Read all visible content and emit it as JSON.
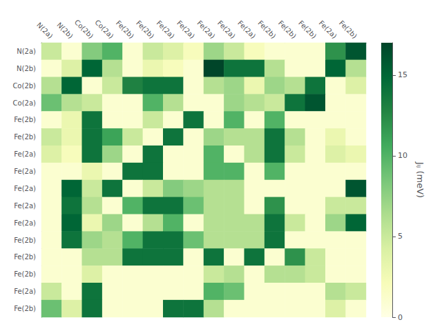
{
  "chart_data": {
    "type": "heatmap",
    "columns": [
      "N(2a)",
      "N(2b)",
      "Co(2b)",
      "Co(2a)",
      "Fe(2b)",
      "Fe(2b)",
      "Fe(2a)",
      "Fe(2a)",
      "Fe(2a)",
      "Fe(2a)",
      "Fe(2a)",
      "Fe(2b)",
      "Fe(2b)",
      "Fe(2b)",
      "Fe(2a)",
      "Fe(2b)"
    ],
    "rows": [
      "N(2a)",
      "N(2b)",
      "Co(2b)",
      "Co(2a)",
      "Fe(2b)",
      "Fe(2b)",
      "Fe(2a)",
      "Fe(2a)",
      "Fe(2a)",
      "Fe(2a)",
      "Fe(2a)",
      "Fe(2b)",
      "Fe(2b)",
      "Fe(2b)",
      "Fe(2a)",
      "Fe(2b)"
    ],
    "values": [
      [
        5,
        1,
        8,
        10,
        1,
        5,
        4,
        2,
        7,
        5,
        2,
        1,
        1,
        1,
        12,
        16
      ],
      [
        1,
        4,
        15,
        6,
        1,
        3,
        2,
        1,
        17,
        14,
        14,
        6,
        1,
        1,
        15,
        6
      ],
      [
        6,
        15,
        1,
        5,
        13,
        14,
        14,
        1,
        6,
        7,
        3,
        7,
        6,
        14,
        1,
        4
      ],
      [
        9,
        6,
        5,
        1,
        1,
        10,
        6,
        1,
        1,
        7,
        6,
        5,
        14,
        16,
        1,
        1
      ],
      [
        1,
        3,
        14,
        1,
        1,
        5,
        1,
        14,
        1,
        10,
        1,
        10,
        1,
        1,
        1,
        1
      ],
      [
        5,
        3,
        14,
        11,
        5,
        1,
        14,
        1,
        7,
        6,
        6,
        14,
        6,
        1,
        3,
        1
      ],
      [
        4,
        2,
        14,
        7,
        1,
        14,
        1,
        1,
        10,
        1,
        6,
        14,
        5,
        1,
        4,
        3
      ],
      [
        1,
        1,
        3,
        1,
        14,
        14,
        1,
        1,
        10,
        10,
        1,
        10,
        1,
        1,
        1,
        1
      ],
      [
        1,
        15,
        5,
        14,
        1,
        5,
        8,
        7,
        6,
        6,
        1,
        1,
        1,
        1,
        1,
        16
      ],
      [
        1,
        14,
        6,
        1,
        10,
        14,
        14,
        9,
        6,
        6,
        1,
        12,
        1,
        1,
        5,
        5
      ],
      [
        1,
        15,
        3,
        7,
        1,
        6,
        10,
        1,
        6,
        6,
        6,
        14,
        5,
        1,
        7,
        15
      ],
      [
        1,
        14,
        7,
        6,
        10,
        14,
        14,
        9,
        6,
        6,
        6,
        14,
        1,
        1,
        1,
        1
      ],
      [
        1,
        1,
        6,
        6,
        14,
        14,
        14,
        1,
        14,
        1,
        14,
        1,
        12,
        5,
        1,
        1
      ],
      [
        1,
        1,
        4,
        1,
        1,
        1,
        1,
        1,
        5,
        6,
        1,
        6,
        6,
        5,
        1,
        1
      ],
      [
        5,
        1,
        14,
        1,
        1,
        1,
        1,
        1,
        10,
        9,
        1,
        1,
        1,
        1,
        6,
        5
      ],
      [
        9,
        4,
        14,
        1,
        1,
        1,
        14,
        14,
        6,
        1,
        1,
        1,
        1,
        1,
        4,
        1
      ]
    ],
    "color_range": [
      0,
      17
    ],
    "color_ticks": [
      0,
      5,
      10,
      15
    ],
    "color_label": "Jᵢⱼ (meV)",
    "colors": [
      "#ffffe5",
      "#f7fcb9",
      "#d9f0a3",
      "#addd8e",
      "#78c679",
      "#41ab5d",
      "#238443",
      "#006837",
      "#004529"
    ],
    "grid": false
  }
}
